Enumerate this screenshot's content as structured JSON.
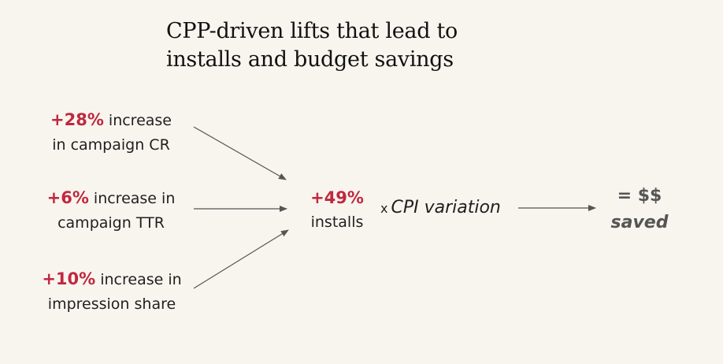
{
  "title": {
    "line1": "CPP-driven lifts that lead to",
    "line2": "installs and budget savings"
  },
  "inputs": [
    {
      "value": "+28%",
      "text1": " increase",
      "text2": "in campaign CR"
    },
    {
      "value": "+6%",
      "text1": " increase in",
      "text2": "campaign TTR"
    },
    {
      "value": "+10%",
      "text1": " increase in",
      "text2": "impression share"
    }
  ],
  "result": {
    "value": "+49%",
    "label": "installs"
  },
  "multiplier": {
    "symbol": "x",
    "label": "CPI variation"
  },
  "outcome": {
    "line1": "= $$",
    "line2": "saved"
  },
  "colors": {
    "highlight": "#c0283f",
    "background": "#f8f5ef",
    "arrow": "#555555",
    "outcome": "#555555"
  }
}
